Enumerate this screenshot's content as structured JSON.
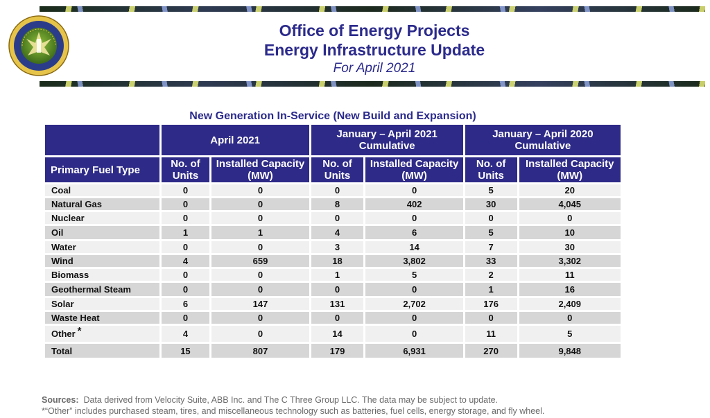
{
  "header": {
    "title_line1": "Office of Energy Projects",
    "title_line2": "Energy Infrastructure Update",
    "title_line3": "For April 2021"
  },
  "seal": {
    "text_top": "DEPARTMENT OF ENERGY",
    "text_bottom": "ENERGY REGULATORY COMMISSION"
  },
  "table": {
    "subtitle": "New Generation In-Service (New Build and Expansion)",
    "groups": [
      "April 2021",
      "January – April 2021 Cumulative",
      "January – April 2020 Cumulative"
    ],
    "fuel_header": "Primary Fuel Type",
    "units_header": "No. of Units",
    "capacity_header": "Installed Capacity (MW)",
    "rows": [
      {
        "fuel": "Coal",
        "v": [
          "0",
          "0",
          "0",
          "0",
          "5",
          "20"
        ]
      },
      {
        "fuel": "Natural Gas",
        "v": [
          "0",
          "0",
          "8",
          "402",
          "30",
          "4,045"
        ]
      },
      {
        "fuel": "Nuclear",
        "v": [
          "0",
          "0",
          "0",
          "0",
          "0",
          "0"
        ]
      },
      {
        "fuel": "Oil",
        "v": [
          "1",
          "1",
          "4",
          "6",
          "5",
          "10"
        ]
      },
      {
        "fuel": "Water",
        "v": [
          "0",
          "0",
          "3",
          "14",
          "7",
          "30"
        ]
      },
      {
        "fuel": "Wind",
        "v": [
          "4",
          "659",
          "18",
          "3,802",
          "33",
          "3,302"
        ]
      },
      {
        "fuel": "Biomass",
        "v": [
          "0",
          "0",
          "1",
          "5",
          "2",
          "11"
        ]
      },
      {
        "fuel": "Geothermal Steam",
        "v": [
          "0",
          "0",
          "0",
          "0",
          "1",
          "16"
        ]
      },
      {
        "fuel": "Solar",
        "v": [
          "6",
          "147",
          "131",
          "2,702",
          "176",
          "2,409"
        ]
      },
      {
        "fuel": "Waste Heat",
        "v": [
          "0",
          "0",
          "0",
          "0",
          "0",
          "0"
        ]
      },
      {
        "fuel": "Other",
        "star": "*",
        "v": [
          "4",
          "0",
          "14",
          "0",
          "11",
          "5"
        ]
      },
      {
        "fuel": "Total",
        "v": [
          "15",
          "807",
          "179",
          "6,931",
          "270",
          "9,848"
        ]
      }
    ]
  },
  "footer": {
    "sources_label": "Sources:",
    "sources_text": "Data derived from Velocity Suite, ABB Inc. and The C Three Group LLC.  The data may be subject to update.",
    "note": "*“Other” includes purchased steam, tires, and miscellaneous technology such as batteries, fuel cells, energy storage, and fly wheel."
  },
  "colors": {
    "header_bg": "#2e2a88",
    "title_text": "#2b2a8c",
    "row_light": "#f0f0f0",
    "row_dark": "#d6d6d6"
  }
}
